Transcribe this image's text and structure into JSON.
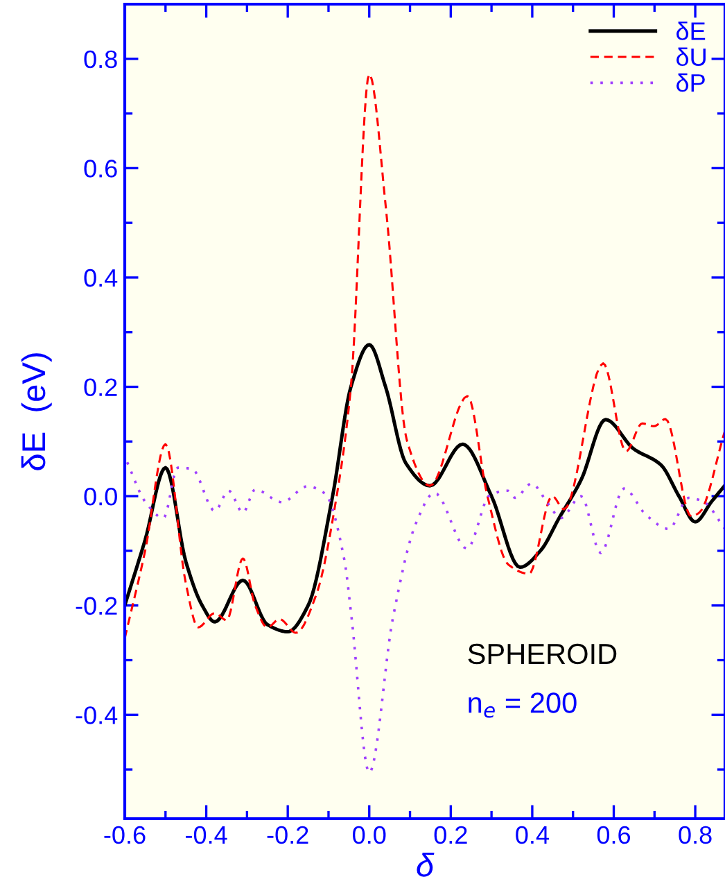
{
  "chart_data": {
    "type": "line",
    "xlabel": "δ",
    "ylabel": "δE  (eV)",
    "xlim": [
      -0.6,
      0.873
    ],
    "ylim": [
      -0.59,
      0.9
    ],
    "xticks": [
      -0.6,
      -0.4,
      -0.2,
      {
        "value": 0,
        "label": "0.0"
      },
      0.2,
      0.4,
      0.6,
      0.8
    ],
    "yticks": [
      -0.4,
      -0.2,
      {
        "value": 0,
        "label": "0.0"
      },
      0.2,
      0.4,
      0.6,
      0.8
    ],
    "grid": false,
    "legend": "top right",
    "marker": "none",
    "annotations": [
      "SPHEROID",
      "n$_{e}$ = 200"
    ],
    "series": [
      {
        "name": "δE",
        "color": "#000000",
        "line_style": "solid",
        "x": [
          -0.6,
          -0.55,
          -0.5,
          -0.45,
          -0.41,
          -0.379,
          -0.31,
          -0.25,
          -0.2,
          -0.15,
          -0.09,
          -0.045,
          0.0,
          0.04,
          0.09,
          0.149,
          0.229,
          0.3,
          0.37,
          0.42,
          0.466,
          0.52,
          0.58,
          0.648,
          0.716,
          0.76,
          0.8,
          0.84,
          0.873
        ],
        "values": [
          -0.2,
          -0.08,
          0.052,
          -0.12,
          -0.2,
          -0.23,
          -0.154,
          -0.235,
          -0.248,
          -0.2,
          0.0,
          0.2,
          0.277,
          0.2,
          0.06,
          0.019,
          0.095,
          0.0,
          -0.13,
          -0.1,
          -0.04,
          0.03,
          0.14,
          0.087,
          0.057,
          0.0,
          -0.047,
          -0.01,
          0.02
        ]
      },
      {
        "name": "δU",
        "color": "#ff0000",
        "line_style": "dashed",
        "x": [
          -0.6,
          -0.55,
          -0.5,
          -0.45,
          -0.42,
          -0.379,
          -0.35,
          -0.31,
          -0.28,
          -0.25,
          -0.22,
          -0.18,
          -0.13,
          -0.08,
          -0.045,
          0.0,
          0.041,
          0.092,
          0.149,
          0.241,
          0.29,
          0.341,
          0.392,
          0.449,
          0.478,
          0.574,
          0.63,
          0.67,
          0.699,
          0.727,
          0.79,
          0.81,
          0.873
        ],
        "values": [
          -0.26,
          -0.1,
          0.095,
          -0.16,
          -0.24,
          -0.214,
          -0.227,
          -0.114,
          -0.2,
          -0.24,
          -0.225,
          -0.25,
          -0.18,
          0.0,
          0.2,
          0.772,
          0.526,
          0.103,
          0.019,
          0.183,
          0.0,
          -0.125,
          -0.142,
          0.0,
          -0.024,
          0.243,
          0.082,
          0.133,
          0.128,
          0.141,
          -0.037,
          -0.03,
          0.12
        ]
      },
      {
        "name": "δP",
        "color": "#a040ff",
        "line_style": "dotted",
        "x": [
          -0.594,
          -0.55,
          -0.505,
          -0.47,
          -0.435,
          -0.379,
          -0.345,
          -0.31,
          -0.28,
          -0.214,
          -0.152,
          -0.109,
          -0.061,
          -0.044,
          0.0,
          0.058,
          0.115,
          0.16,
          0.24,
          0.296,
          0.34,
          0.358,
          0.398,
          0.44,
          0.47,
          0.52,
          0.568,
          0.625,
          0.68,
          0.735,
          0.784,
          0.82,
          0.873
        ],
        "values": [
          0.062,
          -0.01,
          -0.04,
          0.052,
          0.05,
          -0.027,
          0.01,
          -0.03,
          0.012,
          -0.011,
          0.018,
          0.005,
          -0.117,
          -0.218,
          -0.506,
          -0.223,
          -0.049,
          0.006,
          -0.096,
          0.002,
          0.01,
          -0.003,
          0.023,
          -0.015,
          -0.04,
          0.0,
          -0.104,
          0.014,
          -0.035,
          -0.06,
          -0.003,
          -0.01,
          -0.06
        ]
      }
    ]
  }
}
